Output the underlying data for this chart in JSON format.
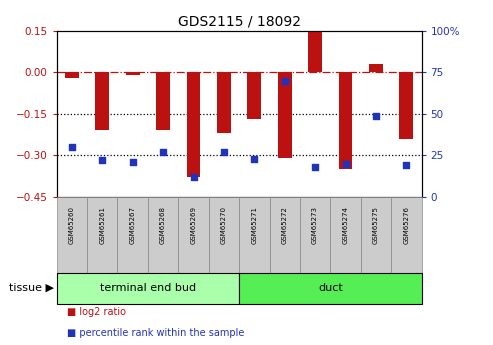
{
  "title": "GDS2115 / 18092",
  "samples": [
    "GSM65260",
    "GSM65261",
    "GSM65267",
    "GSM65268",
    "GSM65269",
    "GSM65270",
    "GSM65271",
    "GSM65272",
    "GSM65273",
    "GSM65274",
    "GSM65275",
    "GSM65276"
  ],
  "log2_ratio": [
    -0.02,
    -0.21,
    -0.01,
    -0.21,
    -0.38,
    -0.22,
    -0.17,
    -0.31,
    0.15,
    -0.35,
    0.03,
    -0.24
  ],
  "percentile": [
    30,
    22,
    21,
    27,
    12,
    27,
    23,
    70,
    18,
    20,
    49,
    19
  ],
  "left_ylim": [
    -0.45,
    0.15
  ],
  "right_ylim": [
    0,
    100
  ],
  "left_yticks": [
    -0.45,
    -0.3,
    -0.15,
    0,
    0.15
  ],
  "right_yticks": [
    0,
    25,
    50,
    75,
    100
  ],
  "bar_color": "#bb1111",
  "dot_color": "#2233bb",
  "tissue_groups": [
    {
      "label": "terminal end bud",
      "indices": [
        0,
        1,
        2,
        3,
        4,
        5
      ],
      "color": "#aaffaa"
    },
    {
      "label": "duct",
      "indices": [
        6,
        7,
        8,
        9,
        10,
        11
      ],
      "color": "#55ee55"
    }
  ],
  "legend_items": [
    {
      "label": "log2 ratio",
      "color": "#bb1111"
    },
    {
      "label": "percentile rank within the sample",
      "color": "#2233bb"
    }
  ],
  "left_label_color": "#bb1111",
  "right_label_color": "#2233bb",
  "bar_width": 0.45
}
